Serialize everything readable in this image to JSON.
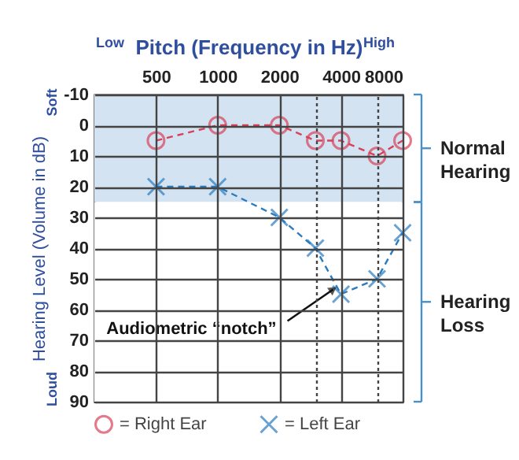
{
  "chart_data": {
    "type": "line",
    "xlabel": "Pitch (Frequency in Hz)",
    "ylabel": "Hearing Level (Volume in dB)",
    "log": "x",
    "x": [
      500,
      1000,
      2000,
      3000,
      4000,
      6000,
      8000
    ],
    "xlim": [
      250,
      8000
    ],
    "xticks": [
      500,
      1000,
      2000,
      {
        "value": 3000,
        "label": null
      },
      4000,
      {
        "value": 6000,
        "label": null
      },
      8000
    ],
    "ylim": [
      90,
      -10
    ],
    "yticks": [
      -10,
      0,
      10,
      20,
      30,
      40,
      50,
      60,
      70,
      80,
      90
    ],
    "grid": true,
    "legend": "bottom",
    "line_style": "dashed",
    "series": [
      {
        "name": "= Right Ear",
        "color": "#d9415a",
        "marker": "circle",
        "values": [
          5,
          0,
          0,
          5,
          5,
          10,
          5
        ]
      },
      {
        "name": "= Left Ear",
        "color": "#2b7bbf",
        "marker": "cross",
        "values": [
          20,
          20,
          30,
          40,
          55,
          50,
          35
        ]
      }
    ],
    "bands": [
      {
        "axis": "y",
        "from": -10,
        "to": 25,
        "label": "Normal Hearing",
        "color": "#d3e3f1"
      },
      {
        "axis": "y",
        "from": 25,
        "to": 90,
        "label": "Hearing Loss",
        "color": "#ffffff"
      }
    ],
    "annotations": [
      "Low",
      "High",
      "Soft",
      "Loud",
      {
        "text": "Audiometric “notch”",
        "x": 4000,
        "y": 55
      }
    ]
  }
}
